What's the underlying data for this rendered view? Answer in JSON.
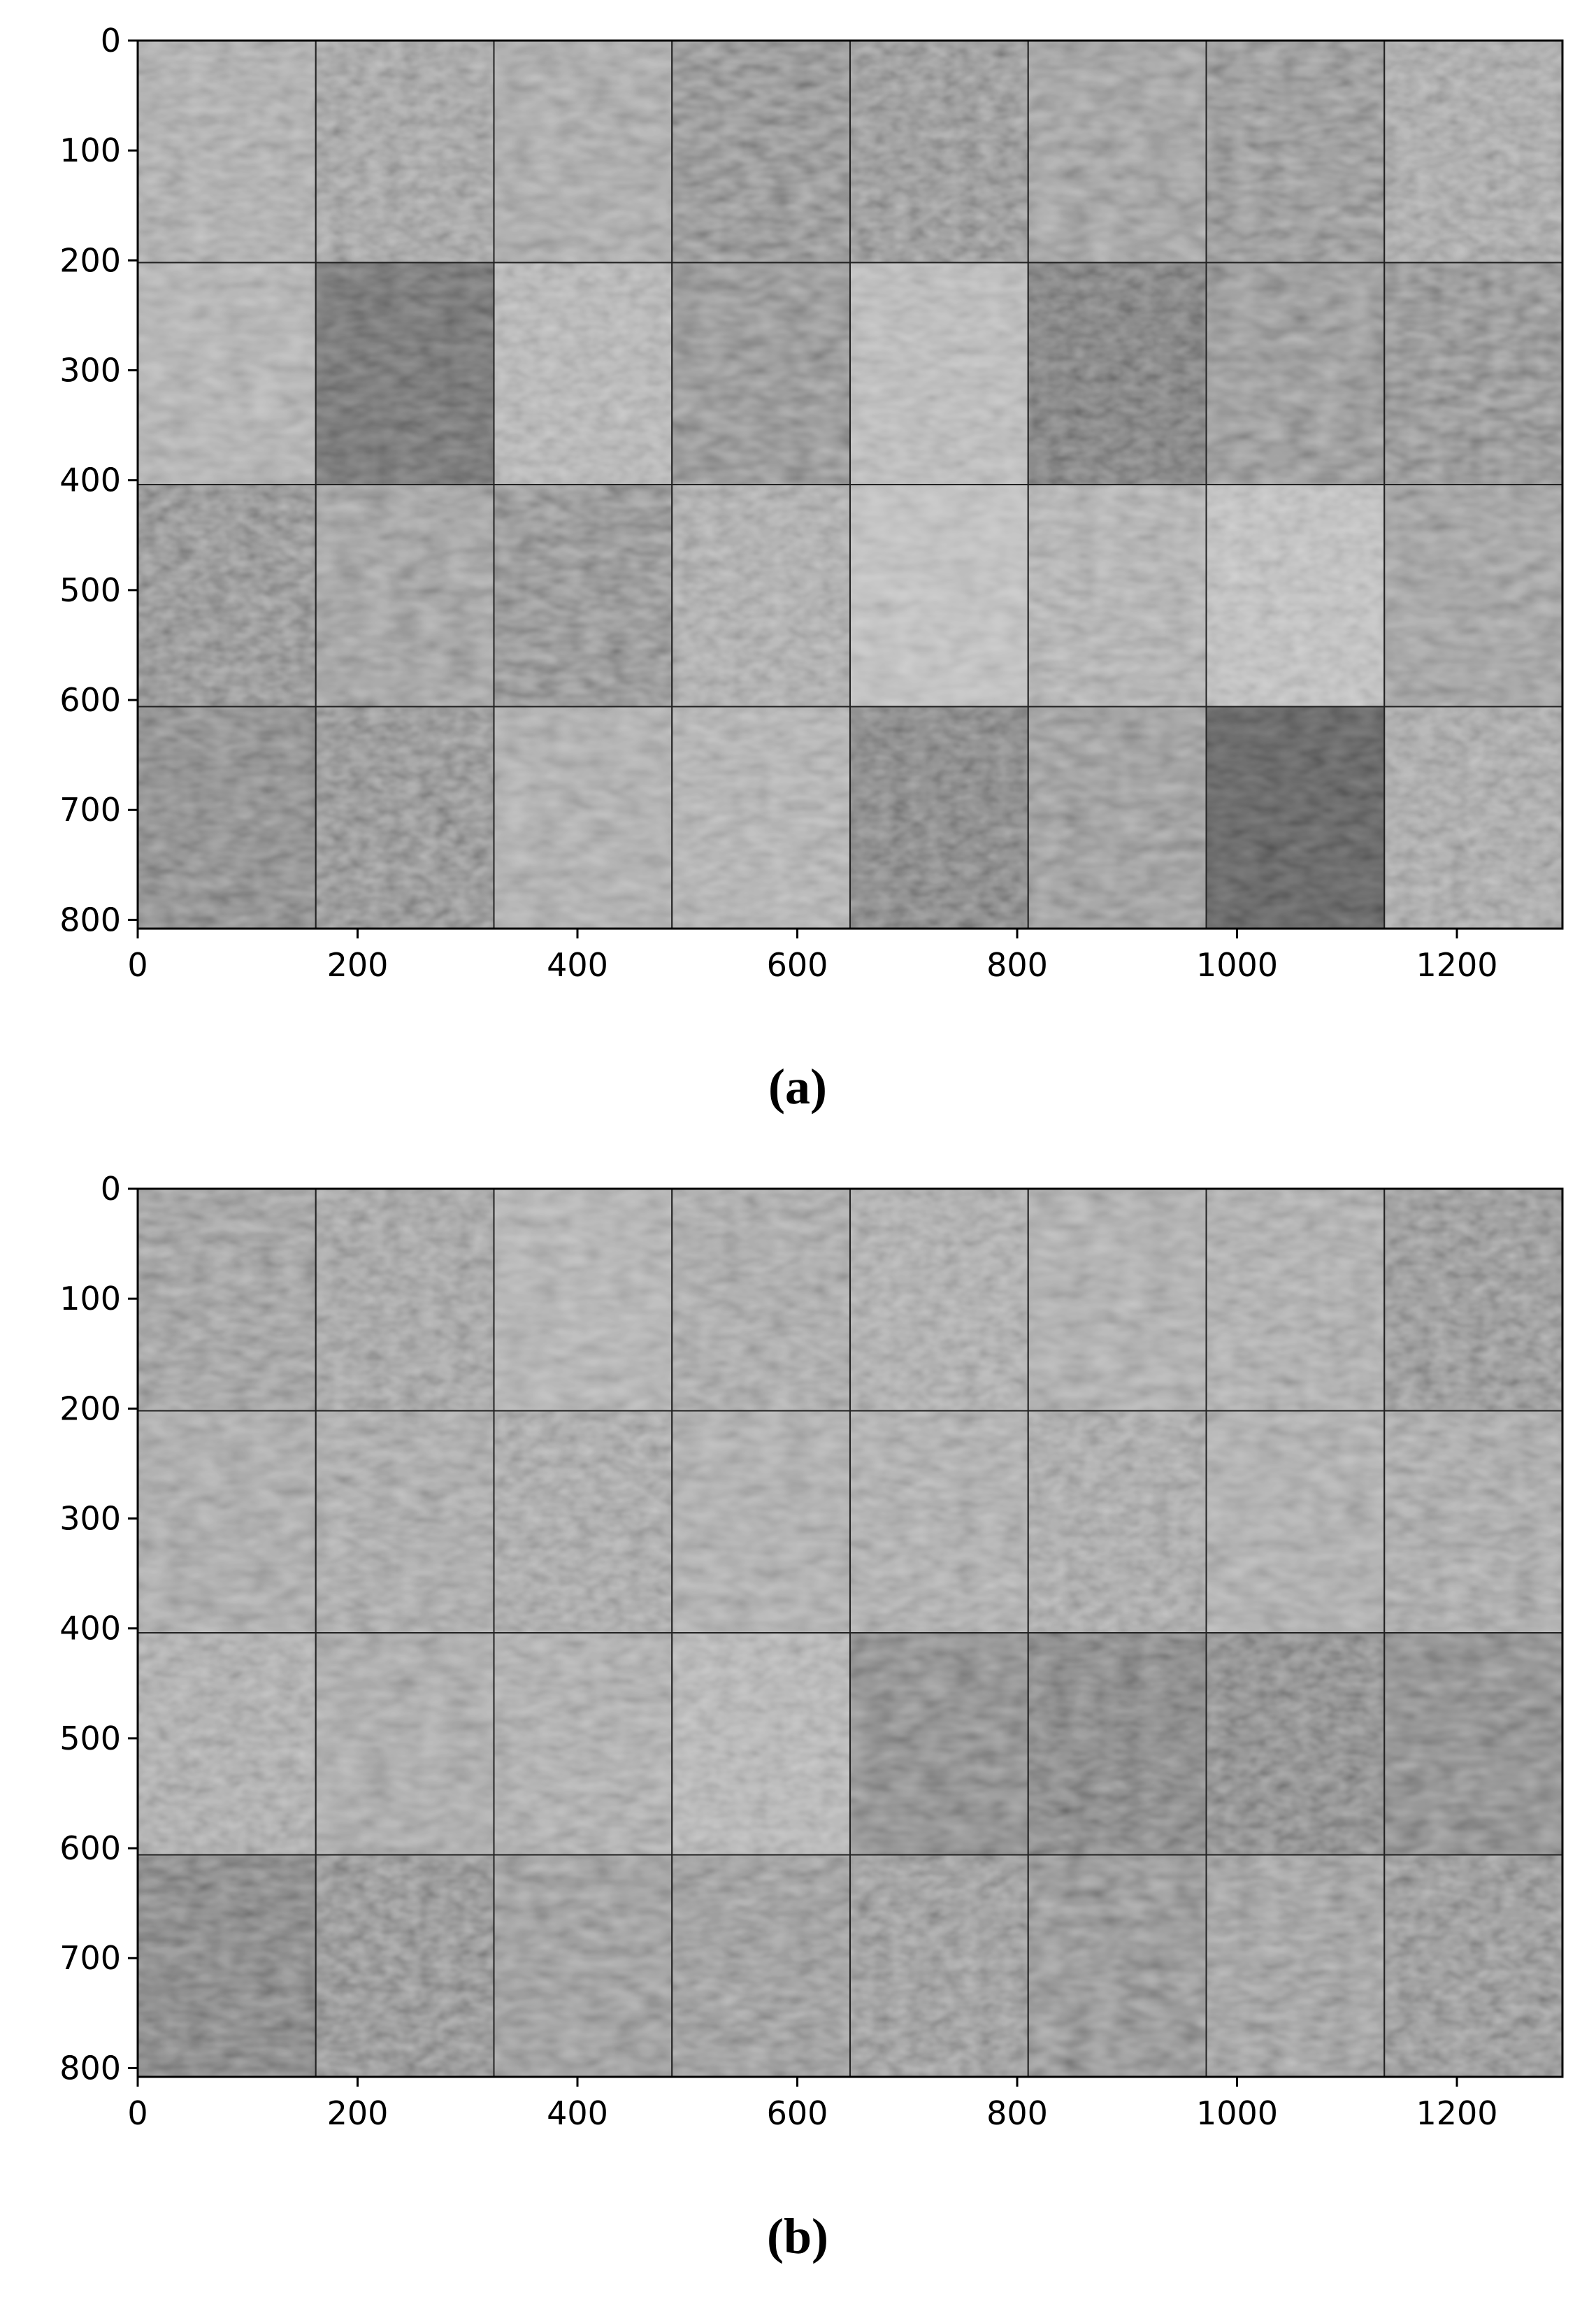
{
  "figure": {
    "panels": [
      {
        "caption": "(a)",
        "grid": {
          "rows": 4,
          "cols": 8
        },
        "x_ticks": [
          "0",
          "200",
          "400",
          "600",
          "800",
          "1000",
          "1200"
        ],
        "y_ticks": [
          "0",
          "100",
          "200",
          "300",
          "400",
          "500",
          "600",
          "700",
          "800"
        ],
        "tile_brightness": [
          [
            0.62,
            0.58,
            0.6,
            0.5,
            0.52,
            0.56,
            0.52,
            0.6
          ],
          [
            0.64,
            0.4,
            0.66,
            0.5,
            0.68,
            0.44,
            0.52,
            0.5
          ],
          [
            0.5,
            0.56,
            0.5,
            0.62,
            0.7,
            0.64,
            0.7,
            0.56
          ],
          [
            0.48,
            0.5,
            0.62,
            0.64,
            0.46,
            0.54,
            0.34,
            0.6
          ]
        ]
      },
      {
        "caption": "(b)",
        "grid": {
          "rows": 4,
          "cols": 8
        },
        "x_ticks": [
          "0",
          "200",
          "400",
          "600",
          "800",
          "1000",
          "1200"
        ],
        "y_ticks": [
          "0",
          "100",
          "200",
          "300",
          "400",
          "500",
          "600",
          "700",
          "800"
        ],
        "tile_brightness": [
          [
            0.56,
            0.58,
            0.64,
            0.6,
            0.62,
            0.62,
            0.62,
            0.52
          ],
          [
            0.6,
            0.6,
            0.6,
            0.62,
            0.62,
            0.6,
            0.62,
            0.6
          ],
          [
            0.62,
            0.6,
            0.62,
            0.66,
            0.48,
            0.46,
            0.48,
            0.48
          ],
          [
            0.46,
            0.5,
            0.54,
            0.54,
            0.54,
            0.5,
            0.56,
            0.52
          ]
        ]
      }
    ]
  }
}
